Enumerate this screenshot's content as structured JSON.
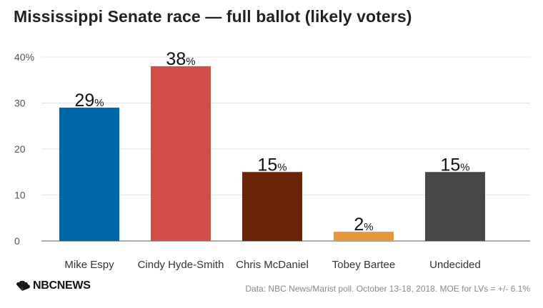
{
  "title": "Mississippi Senate race — full ballot (likely voters)",
  "source": "Data: NBC News/Marist poll. October 13-18, 2018. MOE for LVs = +/- 6.1%",
  "logo": {
    "text": "NBCNEWS",
    "icon": "nbc-peacock-icon"
  },
  "chart_data": {
    "type": "bar",
    "categories": [
      "Mike Espy",
      "Cindy Hyde-Smith",
      "Chris McDaniel",
      "Tobey Bartee",
      "Undecided"
    ],
    "values": [
      29,
      38,
      15,
      2,
      15
    ],
    "colors": [
      "#0066aa",
      "#d04f4b",
      "#6b2408",
      "#e8963a",
      "#474747"
    ],
    "data_labels": [
      "29",
      "38",
      "15",
      "2",
      "15"
    ],
    "data_label_suffix": "%",
    "ylim": [
      0,
      40
    ],
    "yticks": [
      "0",
      "10",
      "20",
      "30",
      "40%"
    ],
    "ytick_values": [
      0,
      10,
      20,
      30,
      40
    ],
    "grid": true
  }
}
